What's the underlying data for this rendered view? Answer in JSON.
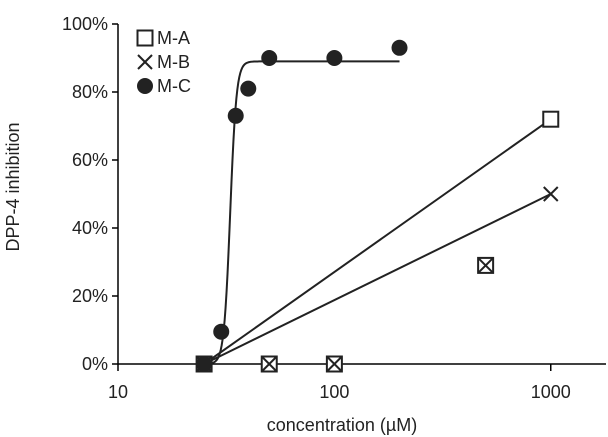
{
  "chart_data": {
    "type": "scatter",
    "xlabel": "concentration (µM)",
    "ylabel": "DPP-4 inhibition",
    "x_scale": "log",
    "xlim": [
      10,
      1800
    ],
    "ylim": [
      0,
      1
    ],
    "x_ticks": [
      10,
      100,
      1000
    ],
    "x_tick_labels": [
      "10",
      "100",
      "1000"
    ],
    "y_ticks": [
      0,
      0.2,
      0.4,
      0.6,
      0.8,
      1.0
    ],
    "y_tick_labels": [
      "0%",
      "20%",
      "40%",
      "60%",
      "80%",
      "100%"
    ],
    "legend": {
      "position": "top-left"
    },
    "series": [
      {
        "name": "M-A",
        "marker": "open-square",
        "points": [
          [
            25,
            0
          ],
          [
            50,
            0
          ],
          [
            100,
            0
          ],
          [
            500,
            0.29
          ],
          [
            1000,
            0.72
          ]
        ],
        "fit": {
          "shape": "linear",
          "points": [
            [
              25,
              0
            ],
            [
              1000,
              0.72
            ]
          ]
        }
      },
      {
        "name": "M-B",
        "marker": "x",
        "points": [
          [
            25,
            0
          ],
          [
            50,
            0
          ],
          [
            100,
            0
          ],
          [
            500,
            0.29
          ],
          [
            1000,
            0.5
          ]
        ],
        "fit": {
          "shape": "linear",
          "points": [
            [
              25,
              0
            ],
            [
              1000,
              0.5
            ]
          ]
        }
      },
      {
        "name": "M-C",
        "marker": "filled-circle",
        "points": [
          [
            25,
            0
          ],
          [
            30,
            0.095
          ],
          [
            35,
            0.73
          ],
          [
            40,
            0.81
          ],
          [
            50,
            0.9
          ],
          [
            100,
            0.9
          ],
          [
            200,
            0.93
          ]
        ],
        "fit": {
          "shape": "sigmoid",
          "top": 0.89,
          "ec50": 33,
          "hill": 30,
          "x_range": [
            25,
            200
          ]
        }
      }
    ]
  }
}
